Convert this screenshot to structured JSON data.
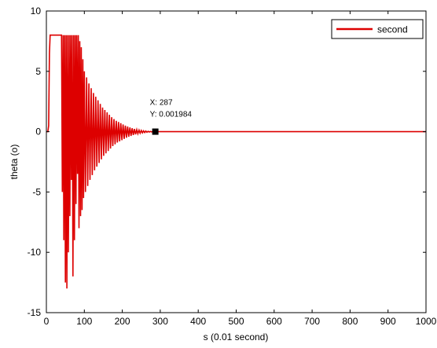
{
  "chart_data": {
    "type": "line",
    "xlabel": "s (0.01 second)",
    "ylabel": "theta (o)",
    "xlim": [
      0,
      1000
    ],
    "ylim": [
      -15,
      10
    ],
    "x_ticks": [
      0,
      100,
      200,
      300,
      400,
      500,
      600,
      700,
      800,
      900,
      1000
    ],
    "y_ticks": [
      -15,
      -10,
      -5,
      0,
      5,
      10
    ],
    "grid": false,
    "legend_position": "top-right",
    "series": [
      {
        "name": "second",
        "color": "#dd0000",
        "x": [
          0,
          4,
          6,
          8,
          10,
          12,
          38,
          40,
          42,
          44,
          46,
          48,
          50,
          52,
          54,
          56,
          58,
          60,
          62,
          64,
          66,
          68,
          70,
          72,
          74,
          76,
          78,
          80,
          82,
          84,
          86,
          88,
          90,
          92,
          94,
          96,
          98,
          100,
          103,
          106,
          109,
          112,
          115,
          118,
          121,
          124,
          127,
          130,
          133,
          136,
          139,
          142,
          145,
          148,
          151,
          154,
          157,
          160,
          163,
          166,
          169,
          172,
          175,
          178,
          181,
          184,
          187,
          190,
          193,
          196,
          199,
          202,
          205,
          208,
          211,
          214,
          217,
          220,
          223,
          226,
          229,
          232,
          235,
          238,
          241,
          244,
          247,
          250,
          253,
          256,
          259,
          262,
          265,
          268,
          271,
          274,
          277,
          280,
          287,
          300,
          400,
          600,
          800,
          1000
        ],
        "y": [
          0,
          0,
          0.5,
          6.5,
          8,
          8,
          8,
          8,
          -5,
          8,
          -9,
          8,
          -12.5,
          8,
          -13,
          8,
          -10,
          8,
          -7,
          8,
          -4,
          8,
          -12,
          8,
          -9,
          8,
          -6,
          8,
          -3.5,
          8,
          -8,
          7.5,
          -7,
          7,
          -6.5,
          6,
          -5.5,
          5,
          -5,
          4.5,
          -4.5,
          4,
          -4,
          3.6,
          -3.6,
          3.2,
          -3.2,
          2.9,
          -2.9,
          2.6,
          -2.6,
          2.3,
          -2.3,
          2,
          -2,
          1.8,
          -1.8,
          1.6,
          -1.6,
          1.4,
          -1.4,
          1.2,
          -1.2,
          1.05,
          -1.05,
          0.9,
          -0.9,
          0.8,
          -0.8,
          0.7,
          -0.7,
          0.6,
          -0.6,
          0.5,
          -0.5,
          0.42,
          -0.42,
          0.35,
          -0.35,
          0.28,
          -0.28,
          0.22,
          -0.22,
          0.17,
          -0.17,
          0.13,
          -0.13,
          0.1,
          -0.1,
          0.07,
          -0.07,
          0.05,
          -0.05,
          0.03,
          -0.03,
          0.02,
          -0.02,
          0.01,
          0.001984,
          0,
          0,
          0,
          0,
          0
        ]
      }
    ],
    "datatip": {
      "x": 287,
      "y": 0.001984,
      "x_text": "X: 287",
      "y_text": "Y: 0.001984"
    }
  }
}
